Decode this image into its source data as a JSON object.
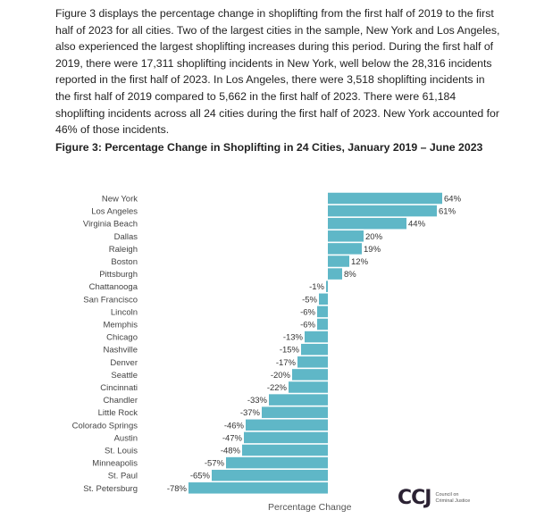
{
  "intro": "Figure 3 displays the percentage change in shoplifting from the first half of 2019 to the first half of 2023 for all cities. Two of the largest cities in the sample, New York and Los Angeles, also experienced the largest shoplifting increases during this period. During the first half of 2019, there were 17,311 shoplifting incidents in New York, well below the 28,316 incidents reported in the first half of 2023. In Los Angeles, there were 3,518 shoplifting incidents in the first half of 2019 compared to 5,662 in the first half of 2023. There were 61,184 shoplifting incidents across all 24 cities during the first half of 2023. New York accounted for 46% of those incidents.",
  "logo": {
    "mark": "CCJ",
    "text": "Council on Criminal Justice"
  },
  "chart_data": {
    "type": "bar",
    "orientation": "horizontal",
    "title": "Figure 3: Percentage Change in Shoplifting in 24 Cities, January 2019 – June 2023",
    "xlabel": "Percentage Change",
    "ylabel": "",
    "bar_color": "#5fb7c7",
    "grid": false,
    "categories": [
      "New York",
      "Los Angeles",
      "Virginia Beach",
      "Dallas",
      "Raleigh",
      "Boston",
      "Pittsburgh",
      "Chattanooga",
      "San Francisco",
      "Lincoln",
      "Memphis",
      "Chicago",
      "Nashville",
      "Denver",
      "Seattle",
      "Cincinnati",
      "Chandler",
      "Little Rock",
      "Colorado Springs",
      "Austin",
      "St. Louis",
      "Minneapolis",
      "St. Paul",
      "St. Petersburg"
    ],
    "values": [
      64,
      61,
      44,
      20,
      19,
      12,
      8,
      -1,
      -5,
      -6,
      -6,
      -13,
      -15,
      -17,
      -20,
      -22,
      -33,
      -37,
      -46,
      -47,
      -48,
      -57,
      -65,
      -78
    ],
    "data_labels": [
      "64%",
      "61%",
      "44%",
      "20%",
      "19%",
      "12%",
      "8%",
      "-1%",
      "-5%",
      "-6%",
      "-6%",
      "-13%",
      "-15%",
      "-17%",
      "-20%",
      "-22%",
      "-33%",
      "-37%",
      "-46%",
      "-47%",
      "-48%",
      "-57%",
      "-65%",
      "-78%"
    ]
  }
}
